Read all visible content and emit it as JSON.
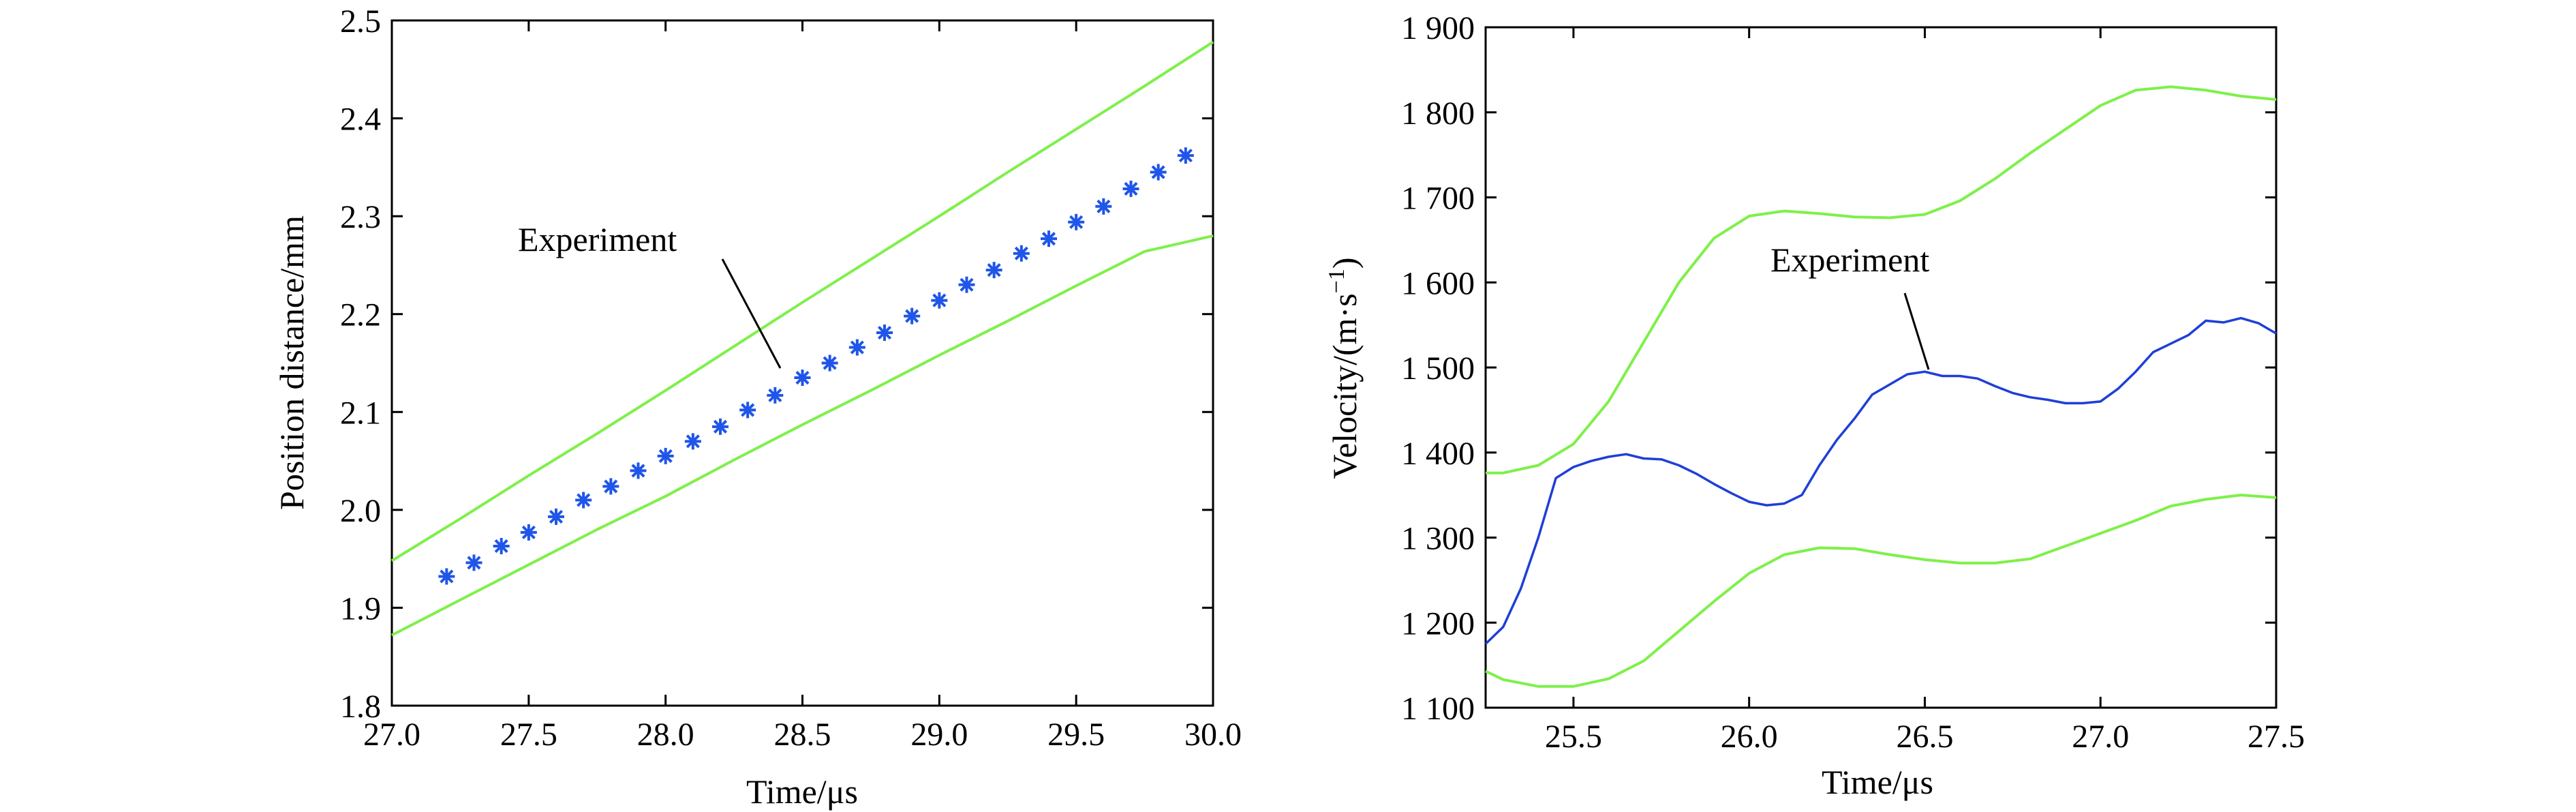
{
  "colors": {
    "experiment_line": "#1f3fd6",
    "experiment_marker": "#1f55e8",
    "envelope": "#7ef04a",
    "axis": "#000000"
  },
  "chart_data": [
    {
      "type": "scatter",
      "xlabel": "Time/μs",
      "ylabel": "Position distance/mm",
      "xlim": [
        27.0,
        30.0
      ],
      "ylim": [
        1.8,
        2.5
      ],
      "x_ticks": [
        27.0,
        27.5,
        28.0,
        28.5,
        29.0,
        29.5,
        30.0
      ],
      "x_tick_labels": [
        "27.0",
        "27.5",
        "28.0",
        "28.5",
        "29.0",
        "29.5",
        "30.0"
      ],
      "y_ticks": [
        1.8,
        1.9,
        2.0,
        2.1,
        2.2,
        2.3,
        2.4,
        2.5
      ],
      "y_tick_labels": [
        "1.8",
        "1.9",
        "2.0",
        "2.1",
        "2.2",
        "2.3",
        "2.4",
        "2.5"
      ],
      "grid": false,
      "annotation": {
        "text": "Experiment",
        "points_to": [
          28.5,
          2.135
        ]
      },
      "series": [
        {
          "role": "experiment",
          "style": "asterisk",
          "x": [
            27.2,
            27.3,
            27.4,
            27.5,
            27.6,
            27.7,
            27.8,
            27.9,
            28.0,
            28.1,
            28.2,
            28.3,
            28.4,
            28.5,
            28.6,
            28.7,
            28.8,
            28.9,
            29.0,
            29.1,
            29.2,
            29.3,
            29.4,
            29.5,
            29.6,
            29.7,
            29.8,
            29.9
          ],
          "y": [
            1.932,
            1.946,
            1.963,
            1.977,
            1.993,
            2.01,
            2.024,
            2.04,
            2.055,
            2.07,
            2.085,
            2.102,
            2.117,
            2.135,
            2.15,
            2.166,
            2.181,
            2.198,
            2.214,
            2.23,
            2.245,
            2.262,
            2.277,
            2.294,
            2.31,
            2.328,
            2.345,
            2.362
          ]
        },
        {
          "role": "upper-bound",
          "style": "line",
          "x": [
            27.0,
            27.25,
            27.5,
            27.75,
            28.0,
            28.25,
            28.5,
            28.75,
            29.0,
            29.25,
            29.5,
            29.75,
            30.0
          ],
          "y": [
            1.948,
            1.991,
            2.035,
            2.078,
            2.122,
            2.167,
            2.212,
            2.256,
            2.3,
            2.345,
            2.389,
            2.433,
            2.478
          ]
        },
        {
          "role": "lower-bound",
          "style": "line",
          "x": [
            27.0,
            27.25,
            27.5,
            27.75,
            28.0,
            28.25,
            28.5,
            28.75,
            29.0,
            29.25,
            29.5,
            29.75,
            30.0
          ],
          "y": [
            1.872,
            1.908,
            1.944,
            1.98,
            2.014,
            2.051,
            2.087,
            2.122,
            2.158,
            2.193,
            2.229,
            2.264,
            2.28
          ]
        }
      ]
    },
    {
      "type": "line",
      "xlabel": "Time/μs",
      "ylabel": "Velocity/(m·s",
      "ylabel_sup": "−1",
      "ylabel_end": ")",
      "xlim": [
        25.25,
        27.5
      ],
      "ylim": [
        1100,
        1900
      ],
      "x_ticks": [
        25.5,
        26.0,
        26.5,
        27.0,
        27.5
      ],
      "x_tick_labels": [
        "25.5",
        "26.0",
        "26.5",
        "27.0",
        "27.5"
      ],
      "y_ticks": [
        1100,
        1200,
        1300,
        1400,
        1500,
        1600,
        1700,
        1800,
        1900
      ],
      "y_tick_labels": [
        "1 100",
        "1 200",
        "1 300",
        "1 400",
        "1 500",
        "1 600",
        "1 700",
        "1 800",
        "1 900"
      ],
      "grid": false,
      "annotation": {
        "text": "Experiment",
        "points_to": [
          26.38,
          1490
        ]
      },
      "series": [
        {
          "role": "experiment",
          "style": "line",
          "x": [
            25.25,
            25.3,
            25.35,
            25.4,
            25.45,
            25.5,
            25.55,
            25.6,
            25.65,
            25.7,
            25.75,
            25.8,
            25.85,
            25.9,
            25.95,
            26.0,
            26.05,
            26.1,
            26.15,
            26.2,
            26.25,
            26.3,
            26.35,
            26.4,
            26.45,
            26.5,
            26.55,
            26.6,
            26.65,
            26.7,
            26.75,
            26.8,
            26.85,
            26.9,
            26.95,
            27.0,
            27.05,
            27.1,
            27.15,
            27.2,
            27.25,
            27.3,
            27.35,
            27.4,
            27.45,
            27.5
          ],
          "y": [
            1175,
            1195,
            1240,
            1300,
            1370,
            1383,
            1390,
            1395,
            1398,
            1393,
            1392,
            1385,
            1375,
            1363,
            1352,
            1342,
            1338,
            1340,
            1350,
            1385,
            1415,
            1440,
            1468,
            1480,
            1492,
            1495,
            1490,
            1490,
            1487,
            1478,
            1470,
            1465,
            1462,
            1458,
            1458,
            1460,
            1475,
            1495,
            1518,
            1528,
            1538,
            1555,
            1553,
            1558,
            1552,
            1540
          ]
        },
        {
          "role": "upper-bound",
          "style": "line",
          "x": [
            25.25,
            25.3,
            25.4,
            25.5,
            25.6,
            25.7,
            25.8,
            25.9,
            26.0,
            26.1,
            26.2,
            26.3,
            26.4,
            26.5,
            26.6,
            26.7,
            26.8,
            26.9,
            27.0,
            27.1,
            27.2,
            27.3,
            27.4,
            27.5
          ],
          "y": [
            1376,
            1376,
            1385,
            1410,
            1460,
            1530,
            1600,
            1652,
            1678,
            1684,
            1681,
            1677,
            1676,
            1680,
            1696,
            1722,
            1752,
            1780,
            1808,
            1826,
            1830,
            1826,
            1819,
            1815
          ]
        },
        {
          "role": "lower-bound",
          "style": "line",
          "x": [
            25.25,
            25.3,
            25.4,
            25.5,
            25.6,
            25.7,
            25.8,
            25.9,
            26.0,
            26.1,
            26.2,
            26.3,
            26.4,
            26.5,
            26.6,
            26.7,
            26.8,
            26.9,
            27.0,
            27.1,
            27.2,
            27.3,
            27.4,
            27.5
          ],
          "y": [
            1143,
            1133,
            1125,
            1125,
            1134,
            1155,
            1190,
            1225,
            1258,
            1280,
            1288,
            1287,
            1280,
            1274,
            1270,
            1270,
            1275,
            1290,
            1305,
            1320,
            1337,
            1345,
            1350,
            1347
          ]
        }
      ]
    }
  ]
}
